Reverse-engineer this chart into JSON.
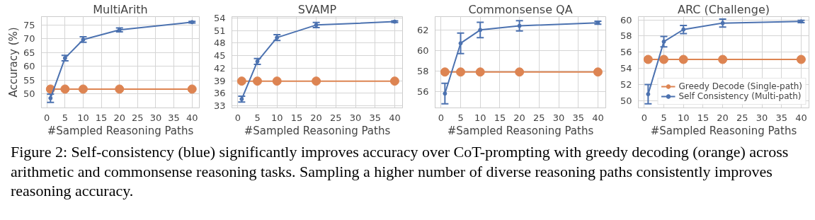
{
  "chart_data": [
    {
      "type": "line",
      "title": "MultiArith",
      "xlabel": "#Sampled Reasoning Paths",
      "ylabel": "Accuracy (%)",
      "x": [
        1,
        5,
        10,
        20,
        40
      ],
      "xlim": [
        -1.5,
        42
      ],
      "xticks": [
        0,
        5,
        10,
        15,
        20,
        25,
        30,
        35,
        40
      ],
      "ylim": [
        45,
        78
      ],
      "yticks": [
        50,
        55,
        60,
        65,
        70,
        75
      ],
      "grid": true,
      "legend": false,
      "series": [
        {
          "color": "#dd8452",
          "marker": "circle",
          "values": [
            51.8,
            51.8,
            51.8,
            51.8,
            51.8
          ]
        },
        {
          "color": "#4c72b0",
          "marker": "circle",
          "values": [
            48.5,
            63,
            69.7,
            73.2,
            76
          ],
          "errors": [
            1.5,
            1,
            1,
            0.7,
            0.3
          ]
        }
      ]
    },
    {
      "type": "line",
      "title": "SVAMP",
      "xlabel": "#Sampled Reasoning Paths",
      "x": [
        1,
        5,
        10,
        20,
        40
      ],
      "xlim": [
        -1.5,
        42
      ],
      "xticks": [
        0,
        5,
        10,
        15,
        20,
        25,
        30,
        35,
        40
      ],
      "ylim": [
        32.5,
        54.3
      ],
      "yticks": [
        33,
        36,
        39,
        42,
        45,
        48,
        51,
        54
      ],
      "grid": true,
      "legend": false,
      "series": [
        {
          "color": "#dd8452",
          "marker": "circle",
          "values": [
            38.9,
            38.9,
            38.9,
            38.9,
            38.9
          ]
        },
        {
          "color": "#4c72b0",
          "marker": "circle",
          "values": [
            34.6,
            43.6,
            49.3,
            52.3,
            53.1
          ],
          "errors": [
            0.7,
            0.7,
            0.7,
            0.6,
            0.2
          ]
        }
      ]
    },
    {
      "type": "line",
      "title": "Commonsense QA",
      "xlabel": "#Sampled Reasoning Paths",
      "x": [
        1,
        5,
        10,
        20,
        40
      ],
      "xlim": [
        -1.5,
        42
      ],
      "xticks": [
        0,
        5,
        10,
        15,
        20,
        25,
        30,
        35,
        40
      ],
      "ylim": [
        54.4,
        63.3
      ],
      "yticks": [
        56,
        58,
        60,
        62
      ],
      "grid": true,
      "legend": false,
      "series": [
        {
          "color": "#dd8452",
          "marker": "circle",
          "values": [
            57.9,
            57.9,
            57.9,
            57.9,
            57.9
          ]
        },
        {
          "color": "#4c72b0",
          "marker": "circle",
          "values": [
            55.8,
            60.7,
            62.0,
            62.4,
            62.7
          ],
          "errors": [
            1.0,
            1.0,
            0.75,
            0.5,
            0.15
          ]
        }
      ]
    },
    {
      "type": "line",
      "title": "ARC (Challenge)",
      "xlabel": "#Sampled Reasoning Paths",
      "x": [
        1,
        5,
        10,
        20,
        40
      ],
      "xlim": [
        -1.5,
        42
      ],
      "xticks": [
        0,
        5,
        10,
        15,
        20,
        25,
        30,
        35,
        40
      ],
      "ylim": [
        49.1,
        60.4
      ],
      "yticks": [
        50,
        52,
        54,
        56,
        58,
        60
      ],
      "grid": true,
      "legend": "bottom right",
      "annotations": [
        "Figure 2: Self-consistency (blue) significantly improves accuracy over CoT-prompting with greedy decoding (orange) across arithmetic and commonsense reasoning tasks. Sampling a higher number of diverse reasoning paths consistently improves reasoning accuracy."
      ],
      "series": [
        {
          "name": "Greedy Decode (Single-path)",
          "color": "#dd8452",
          "marker": "circle",
          "values": [
            55.1,
            55.1,
            55.1,
            55.1,
            55.1
          ]
        },
        {
          "name": "Self Consistency (Multi-path)",
          "color": "#4c72b0",
          "marker": "circle",
          "values": [
            50.8,
            57.3,
            58.8,
            59.6,
            59.8
          ],
          "errors": [
            1.2,
            0.65,
            0.5,
            0.5,
            0.15
          ]
        }
      ]
    }
  ]
}
